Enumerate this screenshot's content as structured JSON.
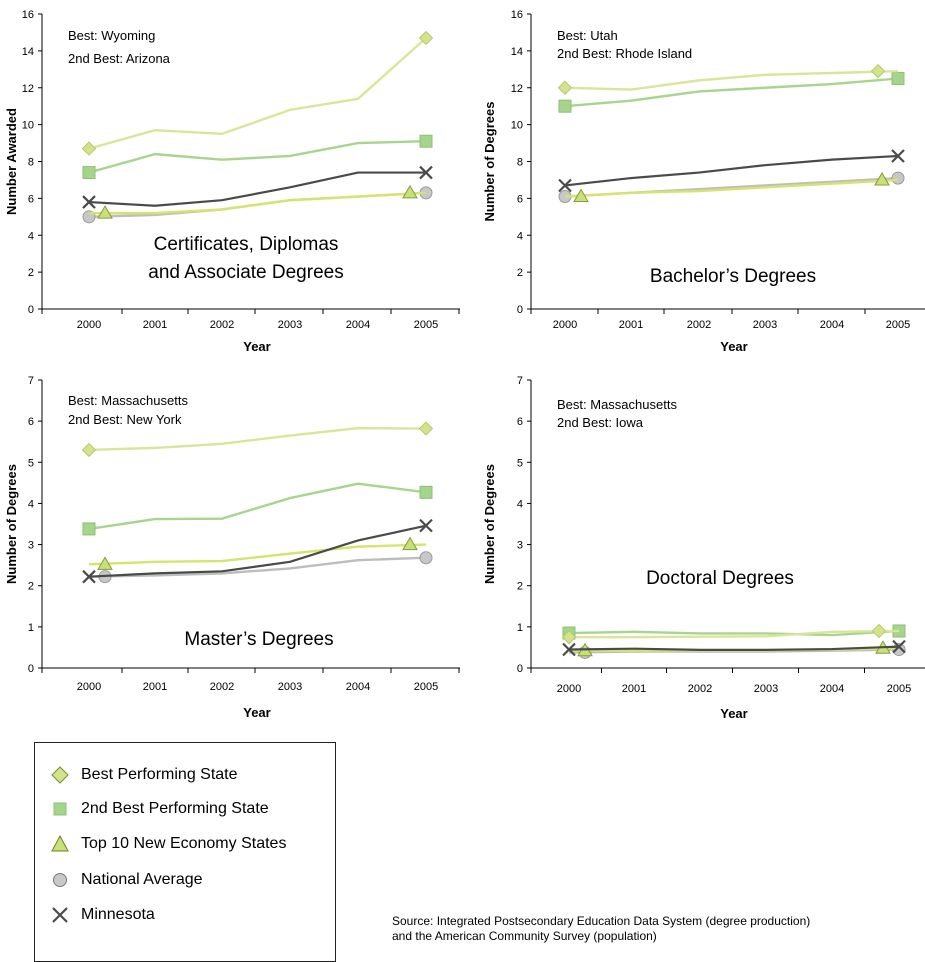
{
  "chart_data": [
    {
      "type": "line",
      "panel": "certificates",
      "title": "Certificates, Diplomas\nand Associate Degrees",
      "best_label": "Best:  Wyoming",
      "second_label": "2nd Best:  Arizona",
      "xlabel": "Year",
      "ylabel": "Number Awarded",
      "x": [
        "2000",
        "2001",
        "2002",
        "2003",
        "2004",
        "2005"
      ],
      "ylim": [
        0,
        16
      ],
      "yticks": [
        0,
        2,
        4,
        6,
        8,
        10,
        12,
        14,
        16
      ],
      "series": [
        {
          "key": "best",
          "values": [
            8.7,
            9.7,
            9.5,
            10.8,
            11.4,
            14.7
          ]
        },
        {
          "key": "second",
          "values": [
            7.4,
            8.4,
            8.1,
            8.3,
            9.0,
            9.1
          ]
        },
        {
          "key": "top10",
          "values": [
            5.2,
            5.2,
            5.4,
            5.9,
            6.1,
            6.3
          ]
        },
        {
          "key": "national",
          "values": [
            5.0,
            5.1,
            5.4,
            5.9,
            6.1,
            6.3
          ]
        },
        {
          "key": "minnesota",
          "values": [
            5.8,
            5.6,
            5.9,
            6.6,
            7.4,
            7.4
          ]
        }
      ]
    },
    {
      "type": "line",
      "panel": "bachelors",
      "title": "Bachelor’s Degrees",
      "best_label": "Best:  Utah",
      "second_label": "2nd Best:  Rhode Island",
      "xlabel": "Year",
      "ylabel": "Number of Degrees",
      "x": [
        "2000",
        "2001",
        "2002",
        "2003",
        "2004",
        "2005"
      ],
      "ylim": [
        0,
        16
      ],
      "yticks": [
        0,
        2,
        4,
        6,
        8,
        10,
        12,
        14,
        16
      ],
      "series": [
        {
          "key": "best",
          "values": [
            12.0,
            11.9,
            12.4,
            12.7,
            12.8,
            12.9
          ]
        },
        {
          "key": "second",
          "values": [
            11.0,
            11.3,
            11.8,
            12.0,
            12.2,
            12.5
          ]
        },
        {
          "key": "top10",
          "values": [
            6.1,
            6.3,
            6.4,
            6.6,
            6.8,
            7.0
          ]
        },
        {
          "key": "national",
          "values": [
            6.1,
            6.3,
            6.5,
            6.7,
            6.9,
            7.1
          ]
        },
        {
          "key": "minnesota",
          "values": [
            6.7,
            7.1,
            7.4,
            7.8,
            8.1,
            8.3
          ]
        }
      ]
    },
    {
      "type": "line",
      "panel": "masters",
      "title": "Master’s Degrees",
      "best_label": "Best:  Massachusetts",
      "second_label": "2nd Best:  New York",
      "xlabel": "Year",
      "ylabel": "Number of Degrees",
      "x": [
        "2000",
        "2001",
        "2002",
        "2003",
        "2004",
        "2005"
      ],
      "ylim": [
        0,
        7
      ],
      "yticks": [
        0,
        1,
        2,
        3,
        4,
        5,
        6,
        7
      ],
      "series": [
        {
          "key": "best",
          "values": [
            5.3,
            5.35,
            5.45,
            5.65,
            5.83,
            5.82
          ]
        },
        {
          "key": "second",
          "values": [
            3.38,
            3.62,
            3.63,
            4.13,
            4.48,
            4.27
          ]
        },
        {
          "key": "top10",
          "values": [
            2.52,
            2.58,
            2.6,
            2.78,
            2.95,
            3.0
          ]
        },
        {
          "key": "national",
          "values": [
            2.22,
            2.25,
            2.3,
            2.42,
            2.62,
            2.68
          ]
        },
        {
          "key": "minnesota",
          "values": [
            2.22,
            2.3,
            2.35,
            2.58,
            3.1,
            3.46
          ]
        }
      ]
    },
    {
      "type": "line",
      "panel": "doctoral",
      "title": "Doctoral Degrees",
      "best_label": "Best:  Massachusetts",
      "second_label": "2nd Best:  Iowa",
      "xlabel": "Year",
      "ylabel": "Number of Degrees",
      "x": [
        "2000",
        "2001",
        "2002",
        "2003",
        "2004",
        "2005"
      ],
      "ylim": [
        0,
        7
      ],
      "yticks": [
        0,
        1,
        2,
        3,
        4,
        5,
        6,
        7
      ],
      "series": [
        {
          "key": "best",
          "values": [
            0.75,
            0.75,
            0.76,
            0.77,
            0.88,
            0.9
          ]
        },
        {
          "key": "second",
          "values": [
            0.85,
            0.88,
            0.84,
            0.84,
            0.8,
            0.9
          ]
        },
        {
          "key": "top10",
          "values": [
            0.42,
            0.42,
            0.43,
            0.43,
            0.45,
            0.48
          ]
        },
        {
          "key": "national",
          "values": [
            0.38,
            0.4,
            0.4,
            0.4,
            0.42,
            0.45
          ]
        },
        {
          "key": "minnesota",
          "values": [
            0.45,
            0.47,
            0.44,
            0.44,
            0.46,
            0.52
          ]
        }
      ]
    }
  ],
  "legend": {
    "items": [
      {
        "key": "best",
        "label": "Best Performing State"
      },
      {
        "key": "second",
        "label": "2nd Best Performing State"
      },
      {
        "key": "top10",
        "label": "Top 10 New Economy States"
      },
      {
        "key": "national",
        "label": "National Average"
      },
      {
        "key": "minnesota",
        "label": "Minnesota"
      }
    ]
  },
  "series_style": {
    "best": {
      "color": "#dbe59a",
      "marker": "diamond",
      "marker_fill": "#d2e38a",
      "marker_stroke": "#b9c870"
    },
    "second": {
      "color": "#a8d58e",
      "marker": "square",
      "marker_fill": "#a5d58b",
      "marker_stroke": "#8cc074"
    },
    "top10": {
      "color": "#d6e46e",
      "marker": "triangle",
      "marker_fill": "#c8e07a",
      "marker_stroke": "#8a9a3a"
    },
    "national": {
      "color": "#bdbdbd",
      "marker": "circle",
      "marker_fill": "#c8c8c8",
      "marker_stroke": "#9a9a9a"
    },
    "minnesota": {
      "color": "#4a4a4a",
      "marker": "x",
      "marker_fill": "none",
      "marker_stroke": "#4a4a4a"
    }
  },
  "source": {
    "line1": "Source: Integrated Postsecondary Education Data System (degree production)",
    "line2": "and the American Community Survey (population)"
  }
}
